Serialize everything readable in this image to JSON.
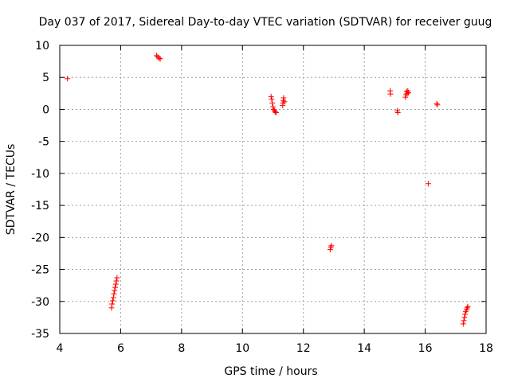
{
  "chart_data": {
    "type": "scatter",
    "title": "Day 037 of 2017, Sidereal Day-to-day VTEC variation (SDTVAR) for receiver guug",
    "xlabel": "GPS time / hours",
    "ylabel": "SDTVAR / TECUs",
    "xlim": [
      4,
      18
    ],
    "ylim": [
      -35,
      10
    ],
    "grid": true,
    "xticks": [
      4,
      6,
      8,
      10,
      12,
      14,
      16,
      18
    ],
    "yticks": [
      10,
      5,
      0,
      -5,
      -10,
      -15,
      -20,
      -25,
      -30,
      -35
    ],
    "marker": "+",
    "color": "#ff0000",
    "series": [
      {
        "name": "SDTVAR",
        "points": [
          [
            4.25,
            4.8
          ],
          [
            5.7,
            -31.0
          ],
          [
            5.72,
            -30.4
          ],
          [
            5.74,
            -29.9
          ],
          [
            5.76,
            -29.4
          ],
          [
            5.78,
            -28.8
          ],
          [
            5.8,
            -28.3
          ],
          [
            5.82,
            -27.8
          ],
          [
            5.84,
            -27.3
          ],
          [
            5.86,
            -26.8
          ],
          [
            5.88,
            -26.3
          ],
          [
            7.18,
            8.4
          ],
          [
            7.22,
            8.2
          ],
          [
            7.26,
            8.0
          ],
          [
            7.3,
            7.9
          ],
          [
            10.94,
            2.0
          ],
          [
            10.96,
            1.6
          ],
          [
            10.98,
            1.0
          ],
          [
            11.0,
            0.4
          ],
          [
            11.02,
            0.0
          ],
          [
            11.05,
            -0.2
          ],
          [
            11.08,
            -0.4
          ],
          [
            11.1,
            -0.5
          ],
          [
            11.32,
            0.6
          ],
          [
            11.33,
            1.0
          ],
          [
            11.34,
            1.4
          ],
          [
            11.35,
            1.8
          ],
          [
            11.38,
            1.2
          ],
          [
            12.88,
            -21.9
          ],
          [
            12.9,
            -21.5
          ],
          [
            12.92,
            -21.3
          ],
          [
            14.85,
            2.9
          ],
          [
            14.86,
            2.4
          ],
          [
            15.08,
            -0.2
          ],
          [
            15.1,
            -0.5
          ],
          [
            15.35,
            1.9
          ],
          [
            15.37,
            2.3
          ],
          [
            15.39,
            2.8
          ],
          [
            15.41,
            2.5
          ],
          [
            15.43,
            2.9
          ],
          [
            15.45,
            2.6
          ],
          [
            16.1,
            -11.6
          ],
          [
            16.38,
            0.9
          ],
          [
            16.4,
            0.7
          ],
          [
            17.25,
            -33.5
          ],
          [
            17.27,
            -33.0
          ],
          [
            17.29,
            -32.5
          ],
          [
            17.31,
            -32.0
          ],
          [
            17.33,
            -31.6
          ],
          [
            17.36,
            -31.3
          ],
          [
            17.38,
            -31.0
          ],
          [
            17.4,
            -30.8
          ]
        ]
      }
    ]
  }
}
